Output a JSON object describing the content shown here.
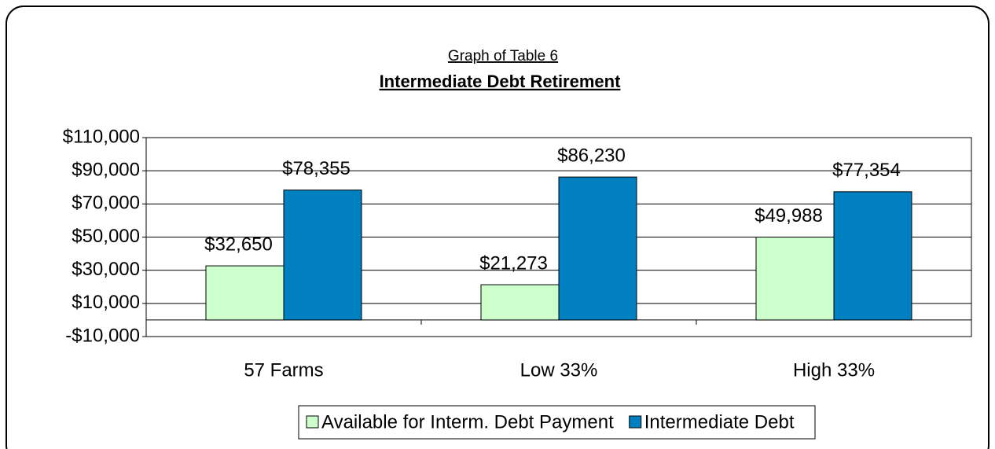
{
  "chart_data": {
    "type": "bar",
    "title": "Graph of Table 6",
    "subtitle": "Intermediate Debt Retirement",
    "categories": [
      "57 Farms",
      "Low 33%",
      "High 33%"
    ],
    "series": [
      {
        "name": "Available for Interm. Debt Payment",
        "color": "#ccffcc",
        "values": [
          32650,
          21273,
          49988
        ],
        "value_labels": [
          "$32,650",
          "$21,273",
          "$49,988"
        ]
      },
      {
        "name": "Intermediate Debt",
        "color": "#0080c0",
        "values": [
          78355,
          86230,
          77354
        ],
        "value_labels": [
          "$78,355",
          "$86,230",
          "$77,354"
        ]
      }
    ],
    "ylim": [
      -10000,
      110000
    ],
    "yticks": [
      {
        "value": -10000,
        "label": "-$10,000"
      },
      {
        "value": 10000,
        "label": "$10,000"
      },
      {
        "value": 30000,
        "label": "$30,000"
      },
      {
        "value": 50000,
        "label": "$50,000"
      },
      {
        "value": 70000,
        "label": "$70,000"
      },
      {
        "value": 90000,
        "label": "$90,000"
      },
      {
        "value": 110000,
        "label": "$110,000"
      }
    ],
    "grid": true,
    "legend": "bottom"
  }
}
